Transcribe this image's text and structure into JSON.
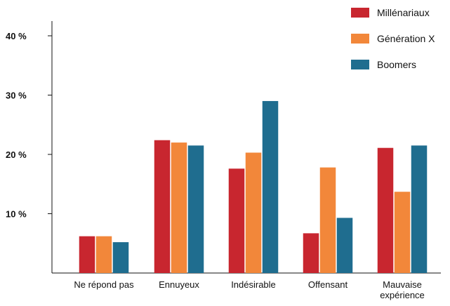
{
  "chart_data": {
    "type": "bar",
    "title": "",
    "xlabel": "",
    "ylabel": "",
    "ylim": [
      0,
      45
    ],
    "yticks": [
      10,
      20,
      30,
      40
    ],
    "ytick_labels": [
      "10 %",
      "20 %",
      "30 %",
      "40 %"
    ],
    "grid": false,
    "legend_position": "top-right",
    "categories": [
      [
        "Ne répond pas"
      ],
      [
        "Ennuyeux"
      ],
      [
        "Indésirable"
      ],
      [
        "Offensant"
      ],
      [
        "Mauvaise",
        "expérience"
      ]
    ],
    "series": [
      {
        "name": "Millénariaux",
        "color": "#c8262f",
        "values": [
          6.2,
          22.4,
          17.6,
          6.7,
          21.1
        ]
      },
      {
        "name": "Génération X",
        "color": "#f2873a",
        "values": [
          6.2,
          22.0,
          20.3,
          17.8,
          13.7
        ]
      },
      {
        "name": "Boomers",
        "color": "#1f6d8f",
        "values": [
          5.2,
          21.5,
          29.0,
          9.3,
          21.5
        ]
      }
    ]
  }
}
